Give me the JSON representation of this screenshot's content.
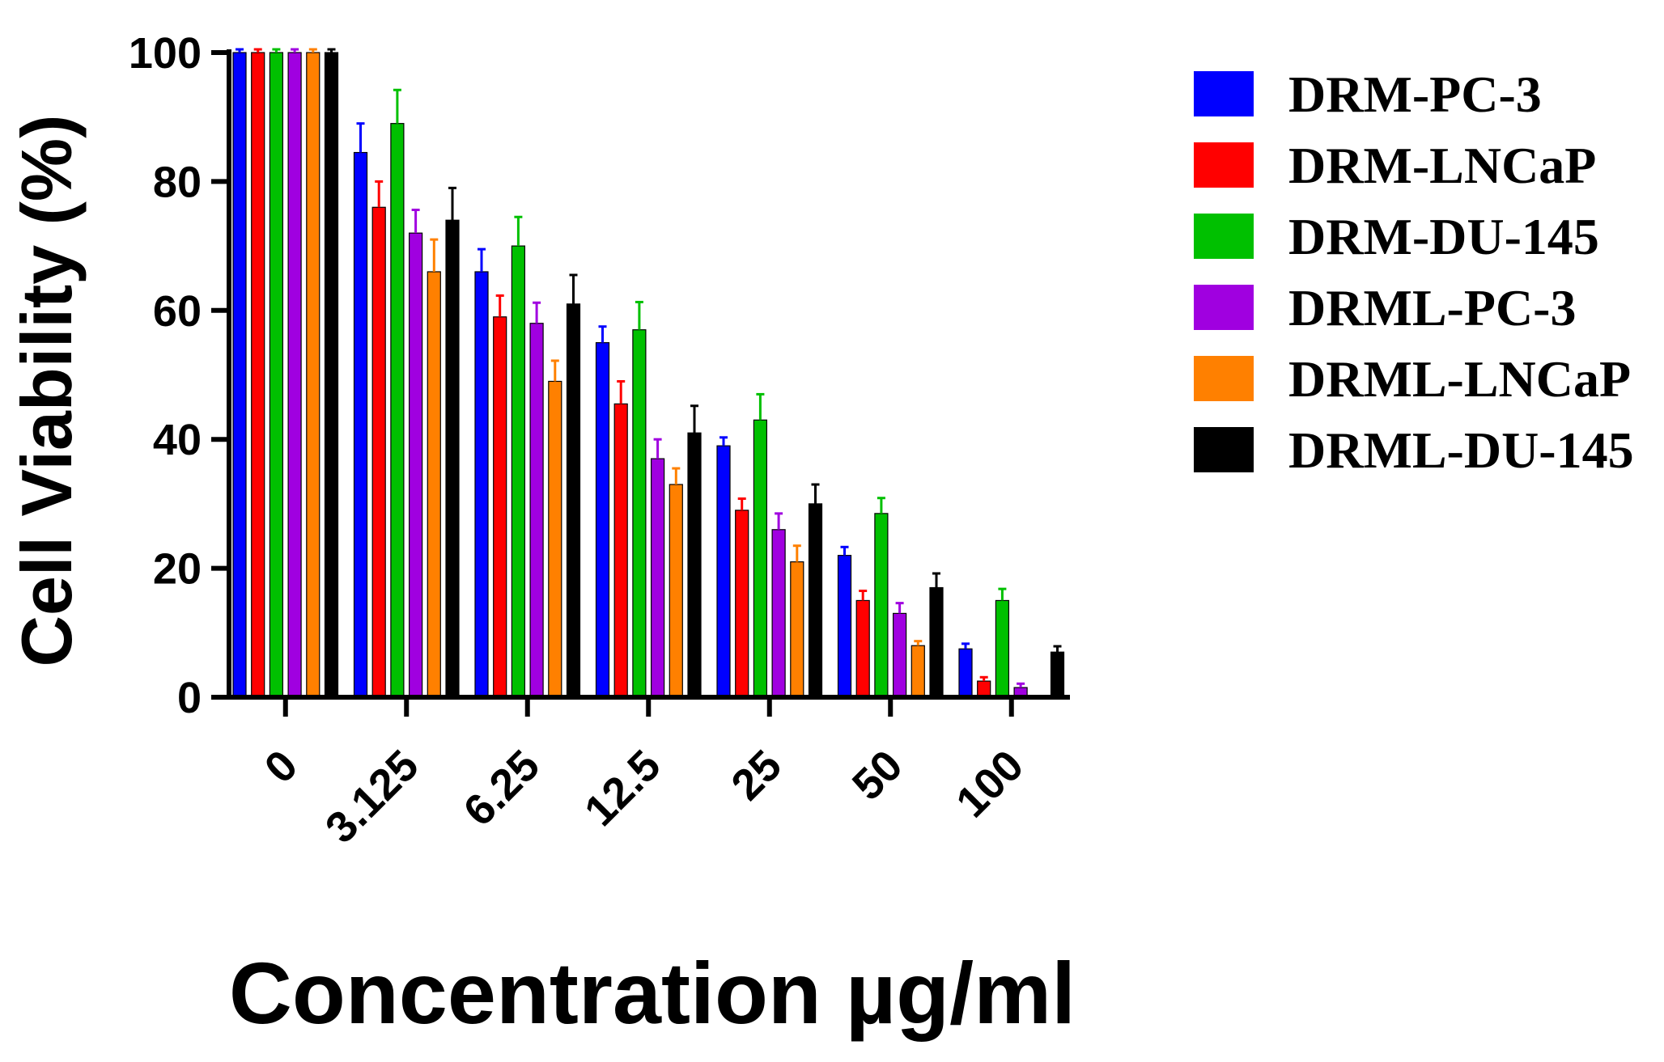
{
  "chart_data": {
    "type": "bar",
    "xlabel": "Concentration µg/ml",
    "ylabel": "Cell  Viability (%)",
    "categories": [
      "0",
      "3.125",
      "6.25",
      "12.5",
      "25",
      "50",
      "100"
    ],
    "ylim": [
      0,
      100
    ],
    "yticks": [
      0,
      20,
      40,
      60,
      80,
      100
    ],
    "grid": false,
    "legend_position": "right",
    "series": [
      {
        "name": "DRM-PC-3",
        "color": "#0000ff",
        "values": [
          100,
          84.5,
          66,
          55,
          39,
          22,
          7.5
        ],
        "errors": [
          0.5,
          4.5,
          3.5,
          2.5,
          1.3,
          1.3,
          0.8
        ]
      },
      {
        "name": "DRM-LNCaP",
        "color": "#ff0000",
        "values": [
          100,
          76,
          59,
          45.5,
          29,
          15,
          2.5
        ],
        "errors": [
          0.5,
          4,
          3.3,
          3.5,
          1.8,
          1.5,
          0.6
        ]
      },
      {
        "name": "DRM-DU-145",
        "color": "#00c000",
        "values": [
          100,
          89,
          70,
          57,
          43,
          28.5,
          15
        ],
        "errors": [
          0.5,
          5.2,
          4.5,
          4.3,
          4,
          2.4,
          1.8
        ]
      },
      {
        "name": "DRML-PC-3",
        "color": "#a000e0",
        "values": [
          100,
          72,
          58,
          37,
          26,
          13,
          1.5
        ],
        "errors": [
          0.5,
          3.6,
          3.2,
          3,
          2.5,
          1.6,
          0.6
        ]
      },
      {
        "name": "DRML-LNCaP",
        "color": "#ff8000",
        "values": [
          100,
          66,
          49,
          33,
          21,
          8,
          0
        ],
        "errors": [
          0.5,
          5,
          3.2,
          2.5,
          2.5,
          0.7,
          0
        ]
      },
      {
        "name": "DRML-DU-145",
        "color": "#000000",
        "values": [
          100,
          74,
          61,
          41,
          30,
          17,
          7
        ],
        "errors": [
          0.5,
          5,
          4.5,
          4.2,
          3,
          2.2,
          0.9
        ]
      }
    ]
  }
}
